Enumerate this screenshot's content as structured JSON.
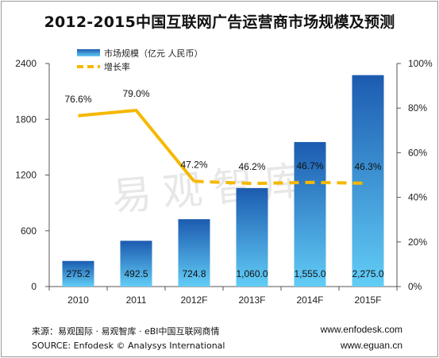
{
  "chart_data": {
    "type": "bar",
    "title": "2012-2015中国互联网广告运营商市场规模及预测",
    "categories": [
      "2010",
      "2011",
      "2012F",
      "2013F",
      "2014F",
      "2015F"
    ],
    "series": [
      {
        "name": "市场规模（亿元 人民币）",
        "type": "bar",
        "axis": "left",
        "values": [
          275.2,
          492.5,
          724.8,
          1060.0,
          1555.0,
          2275.0
        ],
        "labels": [
          "275.2",
          "492.5",
          "724.8",
          "1,060.0",
          "1,555.0",
          "2,275.0"
        ]
      },
      {
        "name": "增长率",
        "type": "line",
        "axis": "right",
        "values": [
          76.6,
          79.0,
          47.2,
          46.2,
          46.7,
          46.3
        ],
        "labels": [
          "76.6%",
          "79.0%",
          "47.2%",
          "46.2%",
          "46.7%",
          "46.3%"
        ]
      }
    ],
    "y_left": {
      "ylim": [
        0,
        2400
      ],
      "ticks": [
        "0",
        "600",
        "1200",
        "1800",
        "2400"
      ]
    },
    "y_right": {
      "ylim": [
        0,
        100
      ],
      "ticks": [
        "0%",
        "20%",
        "40%",
        "60%",
        "80%",
        "100%"
      ]
    },
    "legend": "top-left",
    "grid": false
  },
  "watermark": "易观智库",
  "footer": {
    "source_cn": "来源：易观国际 · 易观智库 · eBI中国互联网商情",
    "source_en": "SOURCE: Enfodesk © Analysys International",
    "url1": "www.enfodesk.com",
    "url2": "www.eguan.cn"
  },
  "colors": {
    "bar_top": "#1a5fb4",
    "bar_bottom": "#5ec8f5",
    "line": "#f5b800"
  }
}
